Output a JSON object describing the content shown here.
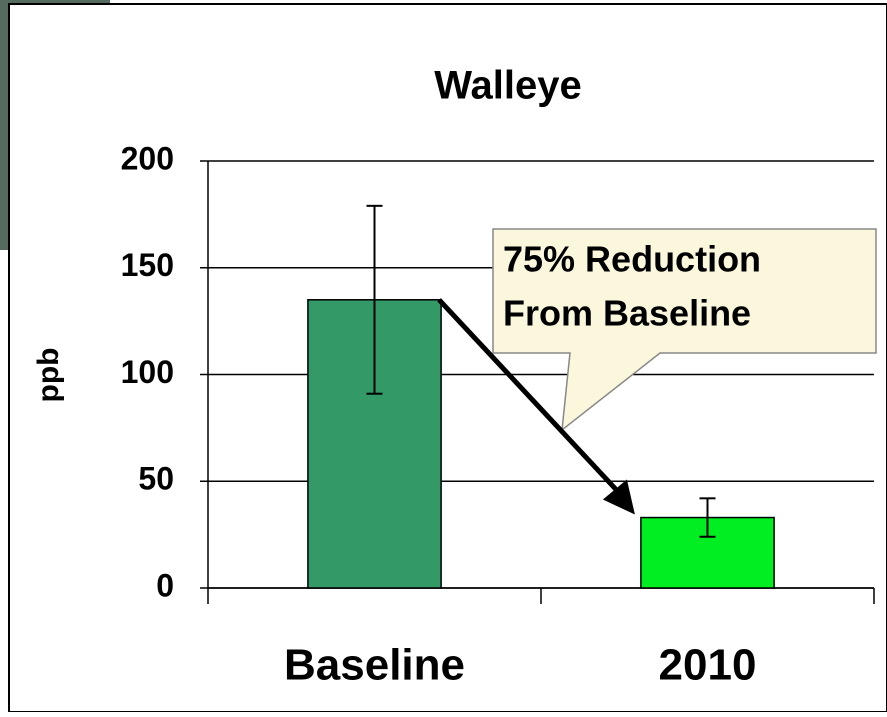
{
  "chart_data": {
    "type": "bar",
    "title": "Walleye",
    "y_label": "ppb",
    "categories": [
      "Baseline",
      "2010"
    ],
    "values": [
      135,
      33
    ],
    "errors": [
      44,
      9
    ],
    "colors": [
      "#339966",
      "#00ee22"
    ],
    "ylim": [
      0,
      200
    ],
    "yticks": [
      0,
      50,
      100,
      150,
      200
    ],
    "grid": true,
    "annotation": [
      "75% Reduction",
      "From Baseline"
    ]
  }
}
